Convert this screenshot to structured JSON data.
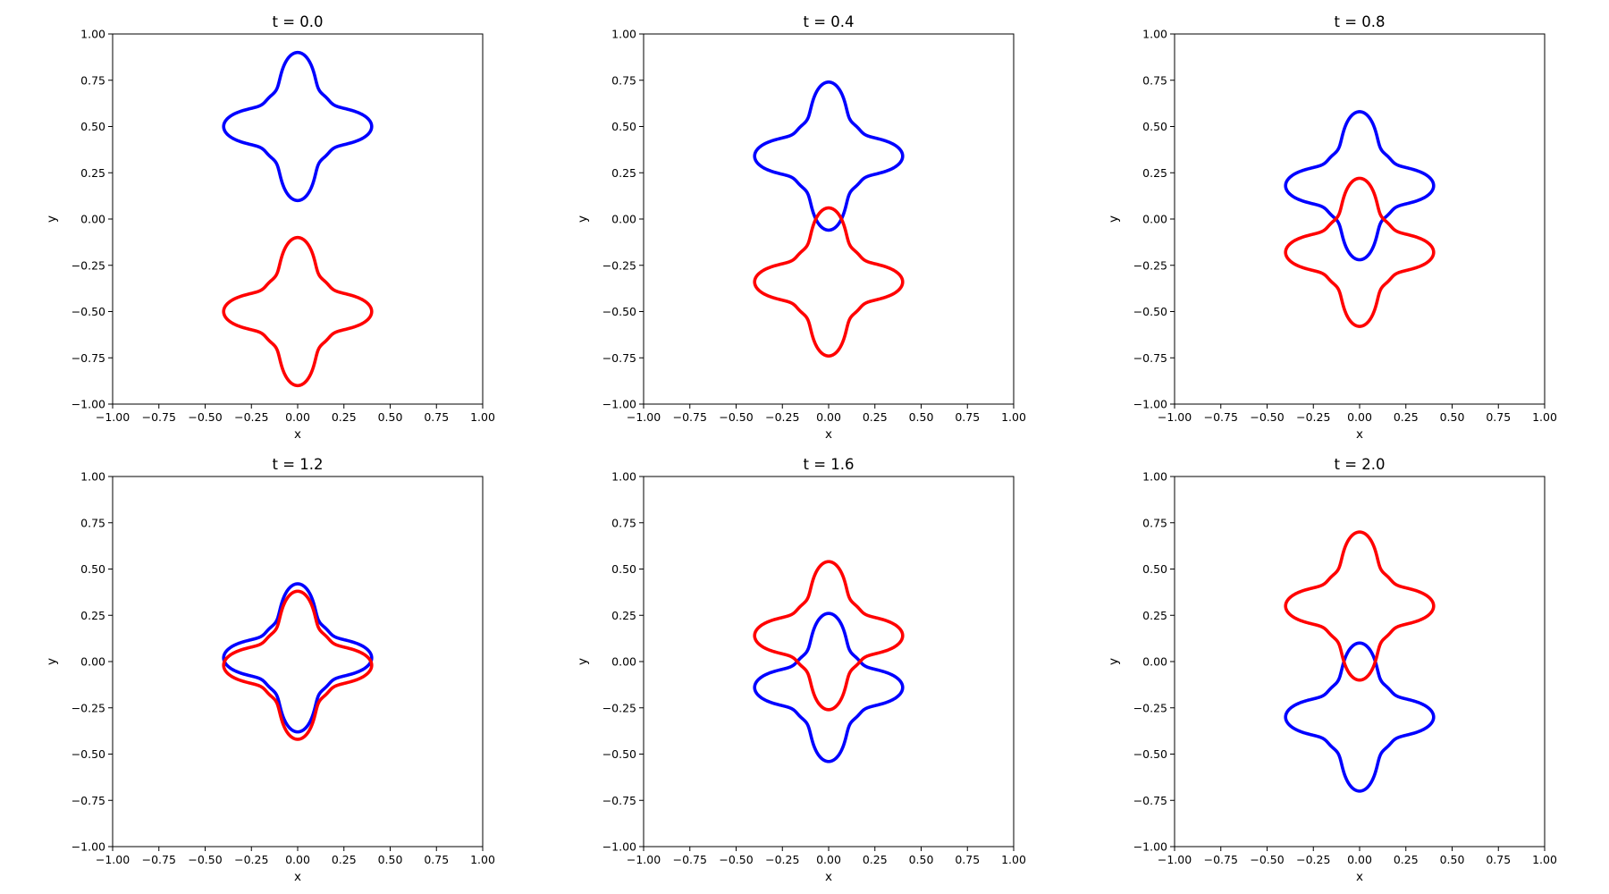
{
  "chart_data": [
    {
      "type": "line",
      "title": "t = 0.0",
      "xlabel": "x",
      "ylabel": "y",
      "xlim": [
        -1.0,
        1.0
      ],
      "ylim": [
        -1.0,
        1.0
      ],
      "xticks": [
        "−1.00",
        "−0.75",
        "−0.50",
        "−0.25",
        "0.00",
        "0.25",
        "0.50",
        "0.75",
        "1.00"
      ],
      "yticks": [
        "−1.00",
        "−0.75",
        "−0.50",
        "−0.25",
        "0.00",
        "0.25",
        "0.50",
        "0.75",
        "1.00"
      ],
      "grid": false,
      "legend": "none",
      "series": [
        {
          "color": "#0000ff",
          "shape": "four-petal",
          "center": [
            0.0,
            0.5
          ],
          "half_width": 0.4,
          "half_height": 0.4
        },
        {
          "color": "#ff0000",
          "shape": "four-petal",
          "center": [
            0.0,
            -0.5
          ],
          "half_width": 0.4,
          "half_height": 0.4
        }
      ]
    },
    {
      "type": "line",
      "title": "t = 0.4",
      "xlabel": "x",
      "ylabel": "y",
      "xlim": [
        -1.0,
        1.0
      ],
      "ylim": [
        -1.0,
        1.0
      ],
      "xticks": [
        "−1.00",
        "−0.75",
        "−0.50",
        "−0.25",
        "0.00",
        "0.25",
        "0.50",
        "0.75",
        "1.00"
      ],
      "yticks": [
        "−1.00",
        "−0.75",
        "−0.50",
        "−0.25",
        "0.00",
        "0.25",
        "0.50",
        "0.75",
        "1.00"
      ],
      "grid": false,
      "legend": "none",
      "series": [
        {
          "color": "#0000ff",
          "shape": "four-petal",
          "center": [
            0.0,
            0.34
          ],
          "half_width": 0.4,
          "half_height": 0.4
        },
        {
          "color": "#ff0000",
          "shape": "four-petal",
          "center": [
            0.0,
            -0.34
          ],
          "half_width": 0.4,
          "half_height": 0.4
        }
      ]
    },
    {
      "type": "line",
      "title": "t = 0.8",
      "xlabel": "x",
      "ylabel": "y",
      "xlim": [
        -1.0,
        1.0
      ],
      "ylim": [
        -1.0,
        1.0
      ],
      "xticks": [
        "−1.00",
        "−0.75",
        "−0.50",
        "−0.25",
        "0.00",
        "0.25",
        "0.50",
        "0.75",
        "1.00"
      ],
      "yticks": [
        "−1.00",
        "−0.75",
        "−0.50",
        "−0.25",
        "0.00",
        "0.25",
        "0.50",
        "0.75",
        "1.00"
      ],
      "grid": false,
      "legend": "none",
      "series": [
        {
          "color": "#0000ff",
          "shape": "four-petal",
          "center": [
            0.0,
            0.18
          ],
          "half_width": 0.4,
          "half_height": 0.4
        },
        {
          "color": "#ff0000",
          "shape": "four-petal",
          "center": [
            0.0,
            -0.18
          ],
          "half_width": 0.4,
          "half_height": 0.4
        }
      ]
    },
    {
      "type": "line",
      "title": "t = 1.2",
      "xlabel": "x",
      "ylabel": "y",
      "xlim": [
        -1.0,
        1.0
      ],
      "ylim": [
        -1.0,
        1.0
      ],
      "xticks": [
        "−1.00",
        "−0.75",
        "−0.50",
        "−0.25",
        "0.00",
        "0.25",
        "0.50",
        "0.75",
        "1.00"
      ],
      "yticks": [
        "−1.00",
        "−0.75",
        "−0.50",
        "−0.25",
        "0.00",
        "0.25",
        "0.50",
        "0.75",
        "1.00"
      ],
      "grid": false,
      "legend": "none",
      "series": [
        {
          "color": "#0000ff",
          "shape": "four-petal",
          "center": [
            0.0,
            0.02
          ],
          "half_width": 0.4,
          "half_height": 0.4
        },
        {
          "color": "#ff0000",
          "shape": "four-petal",
          "center": [
            0.0,
            -0.02
          ],
          "half_width": 0.4,
          "half_height": 0.4
        }
      ]
    },
    {
      "type": "line",
      "title": "t = 1.6",
      "xlabel": "x",
      "ylabel": "y",
      "xlim": [
        -1.0,
        1.0
      ],
      "ylim": [
        -1.0,
        1.0
      ],
      "xticks": [
        "−1.00",
        "−0.75",
        "−0.50",
        "−0.25",
        "0.00",
        "0.25",
        "0.50",
        "0.75",
        "1.00"
      ],
      "yticks": [
        "−1.00",
        "−0.75",
        "−0.50",
        "−0.25",
        "0.00",
        "0.25",
        "0.50",
        "0.75",
        "1.00"
      ],
      "grid": false,
      "legend": "none",
      "series": [
        {
          "color": "#0000ff",
          "shape": "four-petal",
          "center": [
            0.0,
            -0.14
          ],
          "half_width": 0.4,
          "half_height": 0.4
        },
        {
          "color": "#ff0000",
          "shape": "four-petal",
          "center": [
            0.0,
            0.14
          ],
          "half_width": 0.4,
          "half_height": 0.4
        }
      ]
    },
    {
      "type": "line",
      "title": "t = 2.0",
      "xlabel": "x",
      "ylabel": "y",
      "xlim": [
        -1.0,
        1.0
      ],
      "ylim": [
        -1.0,
        1.0
      ],
      "xticks": [
        "−1.00",
        "−0.75",
        "−0.50",
        "−0.25",
        "0.00",
        "0.25",
        "0.50",
        "0.75",
        "1.00"
      ],
      "yticks": [
        "−1.00",
        "−0.75",
        "−0.50",
        "−0.25",
        "0.00",
        "0.25",
        "0.50",
        "0.75",
        "1.00"
      ],
      "grid": false,
      "legend": "none",
      "series": [
        {
          "color": "#0000ff",
          "shape": "four-petal",
          "center": [
            0.0,
            -0.3
          ],
          "half_width": 0.4,
          "half_height": 0.4
        },
        {
          "color": "#ff0000",
          "shape": "four-petal",
          "center": [
            0.0,
            0.3
          ],
          "half_width": 0.4,
          "half_height": 0.4
        }
      ]
    }
  ]
}
